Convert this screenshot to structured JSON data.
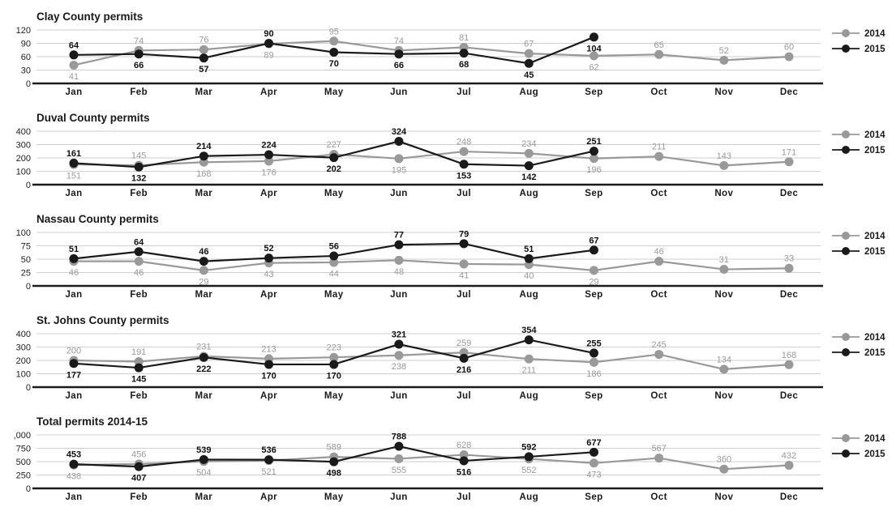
{
  "colors": {
    "series_2014": "#999999",
    "series_2015": "#1a1a1a",
    "grid": "#cfcfcf",
    "axis": "#1a1a1a"
  },
  "chart_data": {
    "note": "see charts array"
  },
  "charts": [
    {
      "type": "line",
      "title": "Clay County permits",
      "categories": [
        "Jan",
        "Feb",
        "Mar",
        "Apr",
        "May",
        "Jun",
        "Jul",
        "Aug",
        "Sep",
        "Oct",
        "Nov",
        "Dec"
      ],
      "ylim": [
        0,
        120
      ],
      "ytick_labels": [
        "0",
        "30",
        "60",
        "90",
        "120"
      ],
      "grid": true,
      "legend_position": "right",
      "series": [
        {
          "name": "2014",
          "color": "#999999",
          "values": [
            41,
            74,
            76,
            89,
            95,
            74,
            81,
            67,
            62,
            65,
            52,
            60
          ],
          "label_pos": [
            "b",
            "a",
            "a",
            "b",
            "a",
            "a",
            "a",
            "a",
            "b",
            "a",
            "a",
            "a"
          ]
        },
        {
          "name": "2015",
          "color": "#1a1a1a",
          "values": [
            64,
            66,
            57,
            90,
            70,
            66,
            68,
            45,
            104
          ],
          "label_pos": [
            "a",
            "b",
            "b",
            "a",
            "b",
            "b",
            "b",
            "b",
            "b"
          ]
        }
      ]
    },
    {
      "type": "line",
      "title": "Duval County permits",
      "categories": [
        "Jan",
        "Feb",
        "Mar",
        "Apr",
        "May",
        "Jun",
        "Jul",
        "Aug",
        "Sep",
        "Oct",
        "Nov",
        "Dec"
      ],
      "ylim": [
        0,
        400
      ],
      "ytick_labels": [
        "0",
        "100",
        "200",
        "300",
        "400"
      ],
      "grid": true,
      "legend_position": "right",
      "series": [
        {
          "name": "2014",
          "color": "#999999",
          "values": [
            151,
            145,
            168,
            176,
            227,
            195,
            248,
            234,
            196,
            211,
            143,
            171
          ],
          "label_pos": [
            "b",
            "a",
            "b",
            "b",
            "a",
            "b",
            "a",
            "a",
            "b",
            "a",
            "a",
            "a"
          ]
        },
        {
          "name": "2015",
          "color": "#1a1a1a",
          "values": [
            161,
            132,
            214,
            224,
            202,
            324,
            153,
            142,
            251
          ],
          "label_pos": [
            "a",
            "b",
            "a",
            "a",
            "b",
            "a",
            "b",
            "b",
            "a"
          ]
        }
      ]
    },
    {
      "type": "line",
      "title": "Nassau County permits",
      "categories": [
        "Jan",
        "Feb",
        "Mar",
        "Apr",
        "May",
        "Jun",
        "Jul",
        "Aug",
        "Sep",
        "Oct",
        "Nov",
        "Dec"
      ],
      "ylim": [
        0,
        100
      ],
      "ytick_labels": [
        "0",
        "25",
        "50",
        "75",
        "100"
      ],
      "grid": true,
      "legend_position": "right",
      "series": [
        {
          "name": "2014",
          "color": "#999999",
          "values": [
            46,
            46,
            29,
            43,
            44,
            48,
            41,
            40,
            29,
            46,
            31,
            33
          ],
          "label_pos": [
            "b",
            "b",
            "b",
            "b",
            "b",
            "b",
            "b",
            "b",
            "b",
            "a",
            "a",
            "a"
          ]
        },
        {
          "name": "2015",
          "color": "#1a1a1a",
          "values": [
            51,
            64,
            46,
            52,
            56,
            77,
            79,
            51,
            67
          ],
          "label_pos": [
            "a",
            "a",
            "a",
            "a",
            "a",
            "a",
            "a",
            "a",
            "a"
          ]
        }
      ]
    },
    {
      "type": "line",
      "title": "St. Johns County permits",
      "categories": [
        "Jan",
        "Feb",
        "Mar",
        "Apr",
        "May",
        "Jun",
        "Jul",
        "Aug",
        "Sep",
        "Oct",
        "Nov",
        "Dec"
      ],
      "ylim": [
        0,
        400
      ],
      "ytick_labels": [
        "0",
        "100",
        "200",
        "300",
        "400"
      ],
      "grid": true,
      "legend_position": "right",
      "series": [
        {
          "name": "2014",
          "color": "#999999",
          "values": [
            200,
            191,
            231,
            213,
            223,
            238,
            259,
            211,
            186,
            245,
            134,
            168
          ],
          "label_pos": [
            "a",
            "a",
            "a",
            "a",
            "a",
            "b",
            "a",
            "b",
            "b",
            "a",
            "a",
            "a"
          ]
        },
        {
          "name": "2015",
          "color": "#1a1a1a",
          "values": [
            177,
            145,
            222,
            170,
            170,
            321,
            216,
            354,
            255
          ],
          "label_pos": [
            "b",
            "b",
            "b",
            "b",
            "b",
            "a",
            "b",
            "a",
            "a"
          ]
        }
      ]
    },
    {
      "type": "line",
      "title": "Total permits 2014-15",
      "categories": [
        "Jan",
        "Feb",
        "Mar",
        "Apr",
        "May",
        "Jun",
        "Jul",
        "Aug",
        "Sep",
        "Oct",
        "Nov",
        "Dec"
      ],
      "ylim": [
        0,
        1000
      ],
      "ytick_labels": [
        "0",
        "250",
        "500",
        "750",
        ",000"
      ],
      "grid": true,
      "legend_position": "right",
      "series": [
        {
          "name": "2014",
          "color": "#999999",
          "values": [
            438,
            456,
            504,
            521,
            589,
            555,
            628,
            552,
            473,
            567,
            360,
            432
          ],
          "label_pos": [
            "b",
            "a",
            "b",
            "b",
            "a",
            "b",
            "a",
            "b",
            "b",
            "a",
            "a",
            "a"
          ]
        },
        {
          "name": "2015",
          "color": "#1a1a1a",
          "values": [
            453,
            407,
            539,
            536,
            498,
            788,
            516,
            592,
            677
          ],
          "label_pos": [
            "a",
            "b",
            "a",
            "a",
            "b",
            "a",
            "b",
            "a",
            "a"
          ]
        }
      ]
    }
  ]
}
